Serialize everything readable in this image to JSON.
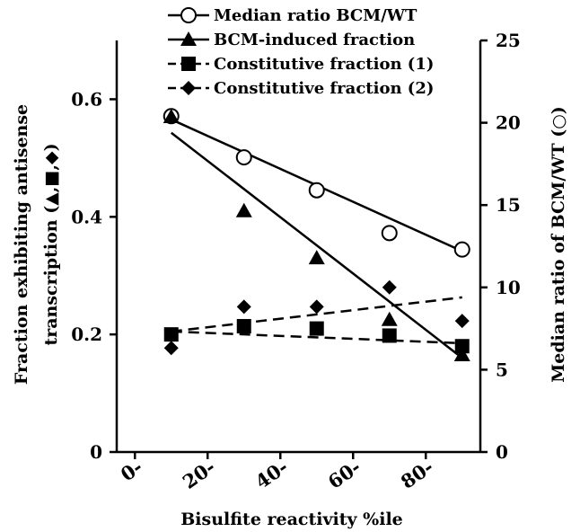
{
  "chart_data": {
    "type": "scatter",
    "xlabel": "Bisulfite reactivity %ile",
    "ylabel_left_line1": "Fraction exhibiting antisense",
    "ylabel_left_line2": "transcription (▲,■,◆)",
    "ylabel_right": "Median ratio of BCM/WT (○)",
    "x_ticks": [
      0,
      20,
      40,
      60,
      80
    ],
    "x_tick_labels": [
      "0-",
      "20-",
      "40-",
      "60-",
      "80-"
    ],
    "xlim": [
      -5,
      95
    ],
    "y_left_ticks": [
      0,
      0.2,
      0.4,
      0.6
    ],
    "y_left_tick_labels": [
      "0",
      "0.2",
      "0.4",
      "0.6"
    ],
    "ylim_left": [
      0,
      0.7
    ],
    "y_right_ticks": [
      0,
      5,
      10,
      15,
      20,
      25
    ],
    "y_right_tick_labels": [
      "0",
      "5",
      "10",
      "15",
      "20",
      "25"
    ],
    "ylim_right": [
      0,
      25
    ],
    "legend_position": "top",
    "series": [
      {
        "name": "Median ratio BCM/WT",
        "axis": "right",
        "marker": "circle-open",
        "trendline": "solid",
        "x": [
          10,
          30,
          50,
          70,
          90
        ],
        "y": [
          20.4,
          17.9,
          15.9,
          13.3,
          12.3
        ],
        "trend": [
          [
            10,
            20.2
          ],
          [
            90,
            12.2
          ]
        ]
      },
      {
        "name": "BCM-induced fraction",
        "axis": "left",
        "marker": "triangle",
        "trendline": "solid",
        "x": [
          10,
          30,
          50,
          70,
          90
        ],
        "y": [
          0.57,
          0.41,
          0.33,
          0.225,
          0.165
        ],
        "trend": [
          [
            10,
            0.543
          ],
          [
            90,
            0.16
          ]
        ]
      },
      {
        "name": "Constitutive fraction (1)",
        "axis": "left",
        "marker": "square",
        "trendline": "dashed",
        "x": [
          10,
          30,
          50,
          70,
          90
        ],
        "y": [
          0.2,
          0.214,
          0.21,
          0.198,
          0.18
        ],
        "trend": [
          [
            10,
            0.205
          ],
          [
            90,
            0.185
          ]
        ]
      },
      {
        "name": "Constitutive fraction (2)",
        "axis": "left",
        "marker": "diamond",
        "trendline": "dashed",
        "x": [
          10,
          30,
          50,
          70,
          90
        ],
        "y": [
          0.177,
          0.247,
          0.247,
          0.28,
          0.223
        ],
        "trend": [
          [
            10,
            0.205
          ],
          [
            90,
            0.263
          ]
        ]
      }
    ]
  }
}
